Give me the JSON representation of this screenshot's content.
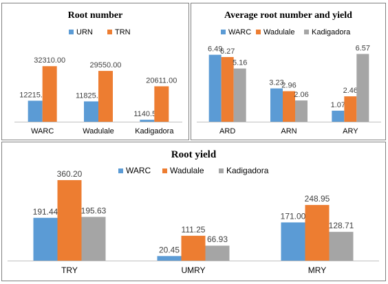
{
  "colors": {
    "series1": "#5b9bd5",
    "series2": "#ed7d31",
    "series3": "#a5a5a5",
    "axis": "#bfbfbf",
    "text": "#000000"
  },
  "chart_data": [
    {
      "type": "bar",
      "title": "Root number",
      "legend_position": "top",
      "categories": [
        "WARC",
        "Wadulale",
        "Kadigadora"
      ],
      "series": [
        {
          "name": "URN",
          "values": [
            12215.0,
            11825.0,
            1140.5
          ],
          "labels": [
            "12215.00",
            "11825.00",
            "1140.50"
          ]
        },
        {
          "name": "TRN",
          "values": [
            32310.0,
            29550.0,
            20611.0
          ],
          "labels": [
            "32310.00",
            "29550.00",
            "20611.00"
          ]
        }
      ],
      "ylim": [
        0,
        40000
      ]
    },
    {
      "type": "bar",
      "title": "Average root number and yield",
      "legend_position": "top",
      "categories": [
        "ARD",
        "ARN",
        "ARY"
      ],
      "series": [
        {
          "name": "WARC",
          "values": [
            6.49,
            3.23,
            1.07
          ],
          "labels": [
            "6.49",
            "3.23",
            "1.07"
          ]
        },
        {
          "name": "Wadulale",
          "values": [
            6.27,
            2.96,
            2.46
          ],
          "labels": [
            "6.27",
            "2.96",
            "2.46"
          ]
        },
        {
          "name": "Kadigadora",
          "values": [
            5.16,
            2.06,
            6.57
          ],
          "labels": [
            "5.16",
            "2.06",
            "6.57"
          ]
        }
      ],
      "ylim": [
        0,
        8
      ]
    },
    {
      "type": "bar",
      "title": "Root yield",
      "legend_position": "top",
      "categories": [
        "TRY",
        "UMRY",
        "MRY"
      ],
      "series": [
        {
          "name": "WARC",
          "values": [
            191.44,
            20.45,
            171.0
          ],
          "labels": [
            "191.44",
            "20.45",
            "171.00"
          ]
        },
        {
          "name": "Wadulale",
          "values": [
            360.2,
            111.25,
            248.95
          ],
          "labels": [
            "360.20",
            "111.25",
            "248.95"
          ]
        },
        {
          "name": "Kadigadora",
          "values": [
            195.63,
            66.93,
            128.71
          ],
          "labels": [
            "195.63",
            "66.93",
            "128.71"
          ]
        }
      ],
      "ylim": [
        0,
        400
      ]
    }
  ]
}
